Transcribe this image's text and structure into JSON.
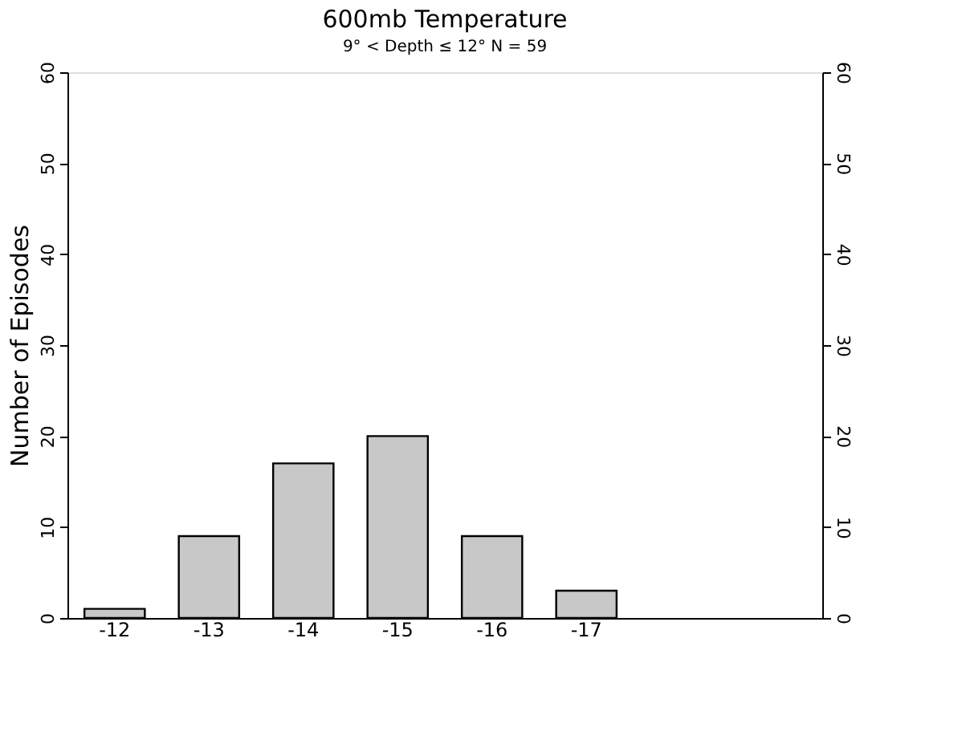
{
  "chart_data": {
    "type": "bar",
    "title": "600mb Temperature",
    "subtitle": "9° < Depth ≤ 12°  N = 59",
    "ylabel": "Number of Episodes",
    "categories": [
      "-12",
      "-13",
      "-14",
      "-15",
      "-16",
      "-17",
      null,
      null
    ],
    "values": [
      1,
      9,
      17,
      20,
      9,
      3,
      null,
      null
    ],
    "color": "#c8c8c8",
    "ylim": [
      0,
      60
    ],
    "yticks": [
      0,
      10,
      20,
      30,
      40,
      50,
      60
    ],
    "y2lim": [
      0,
      60
    ],
    "y2ticks": [
      0,
      10,
      20,
      30,
      40,
      50,
      60
    ],
    "grid": false
  }
}
